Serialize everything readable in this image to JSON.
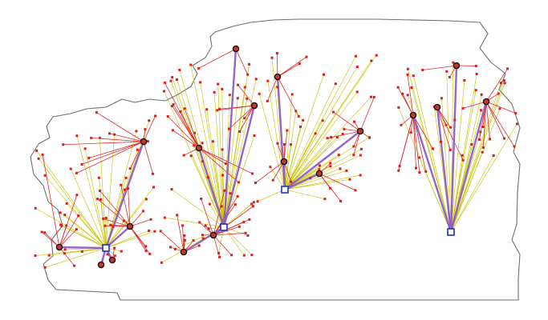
{
  "map": {
    "colors": {
      "boundary": "#6f6f6f",
      "demand_to_depot_link": "#c8c200",
      "demand_to_hub_link": "#e12020",
      "hub_to_depot_link": "#8e5ec4",
      "demand_point": "#e11b1b",
      "hub": "#c0392b",
      "depot": "#1f2fc9"
    },
    "icons": {
      "demand_point": "small-red-square",
      "hub": "dark-red-circle",
      "depot": "blue-outlined-square"
    }
  }
}
